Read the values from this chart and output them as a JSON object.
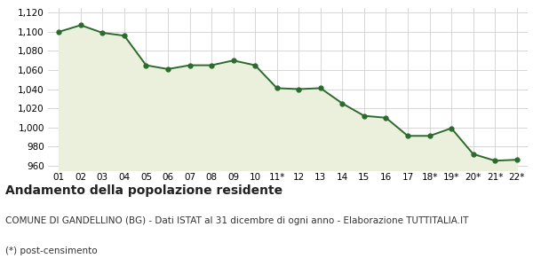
{
  "x_labels": [
    "01",
    "02",
    "03",
    "04",
    "05",
    "06",
    "07",
    "08",
    "09",
    "10",
    "11*",
    "12",
    "13",
    "14",
    "15",
    "16",
    "17",
    "18*",
    "19*",
    "20*",
    "21*",
    "22*"
  ],
  "y_values": [
    1100,
    1107,
    1099,
    1096,
    1065,
    1061,
    1065,
    1065,
    1070,
    1065,
    1041,
    1040,
    1041,
    1025,
    1012,
    1010,
    991,
    991,
    999,
    972,
    965,
    966
  ],
  "ylim": [
    955,
    1125
  ],
  "yticks": [
    960,
    980,
    1000,
    1020,
    1040,
    1060,
    1080,
    1100,
    1120
  ],
  "line_color": "#2d6a2d",
  "fill_color": "#eaf0dc",
  "marker_color": "#2d6a2d",
  "bg_color": "#ffffff",
  "grid_color": "#d0d0d0",
  "title": "Andamento della popolazione residente",
  "subtitle": "COMUNE DI GANDELLINO (BG) - Dati ISTAT al 31 dicembre di ogni anno - Elaborazione TUTTITALIA.IT",
  "footnote": "(*) post-censimento",
  "title_fontsize": 10,
  "subtitle_fontsize": 7.5,
  "footnote_fontsize": 7.5
}
